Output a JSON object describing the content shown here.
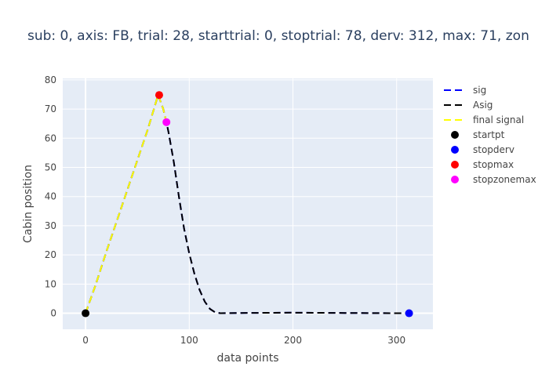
{
  "chart_data": {
    "type": "line",
    "title": "sub: 0, axis: FB, trial: 28, starttrial: 0, stoptrial: 78, derv: 312, max: 71, zon",
    "xlabel": "data points",
    "ylabel": "Cabin position",
    "xlim": [
      -22,
      335
    ],
    "ylim": [
      -5.5,
      80.5
    ],
    "x_ticks": [
      0,
      100,
      200,
      300
    ],
    "y_ticks": [
      0,
      10,
      20,
      30,
      40,
      50,
      60,
      70,
      80
    ],
    "grid": true,
    "legend_position": "right",
    "series": [
      {
        "name": "sig",
        "kind": "line",
        "style": "dash",
        "color": "#0000ff",
        "x": [
          0,
          10,
          20,
          30,
          40,
          50,
          60,
          70,
          75,
          78,
          80,
          85,
          90,
          95,
          100,
          105,
          110,
          115,
          120,
          125,
          130,
          150,
          200,
          250,
          300,
          312,
          315
        ],
        "y": [
          0,
          10,
          21,
          31.5,
          42,
          52.5,
          63,
          74.8,
          70,
          65.5,
          62,
          52,
          40,
          29,
          20.5,
          13.5,
          8,
          4,
          1.5,
          0.3,
          0,
          0.1,
          0.2,
          0.1,
          0,
          0,
          0
        ]
      },
      {
        "name": "Asig",
        "kind": "line",
        "style": "dash",
        "color": "#000000",
        "x": [
          0,
          10,
          20,
          30,
          40,
          50,
          60,
          70,
          75,
          78,
          80,
          85,
          90,
          95,
          100,
          105,
          110,
          115,
          120,
          125,
          130,
          150,
          200,
          250,
          300,
          312,
          315
        ],
        "y": [
          0,
          10,
          21,
          31.5,
          42,
          52.5,
          63,
          74.8,
          70,
          65.5,
          62,
          52,
          40,
          29,
          20.5,
          13.5,
          8,
          4,
          1.5,
          0.3,
          0,
          0.1,
          0.2,
          0.1,
          0,
          0,
          0
        ]
      },
      {
        "name": "final signal",
        "kind": "line",
        "style": "dash",
        "color": "#ffff00",
        "x": [
          0,
          10,
          20,
          30,
          40,
          50,
          60,
          70,
          75,
          78
        ],
        "y": [
          0,
          10,
          21,
          31.5,
          42,
          52.5,
          63,
          74.8,
          70,
          65.5
        ]
      },
      {
        "name": "startpt",
        "kind": "marker",
        "color": "#000000",
        "x": [
          0
        ],
        "y": [
          0
        ]
      },
      {
        "name": "stopderv",
        "kind": "marker",
        "color": "#0000ff",
        "x": [
          312
        ],
        "y": [
          0
        ]
      },
      {
        "name": "stopmax",
        "kind": "marker",
        "color": "#ff0000",
        "x": [
          71
        ],
        "y": [
          74.8
        ]
      },
      {
        "name": "stopzonemax",
        "kind": "marker",
        "color": "#ff00ff",
        "x": [
          78
        ],
        "y": [
          65.5
        ]
      }
    ]
  }
}
